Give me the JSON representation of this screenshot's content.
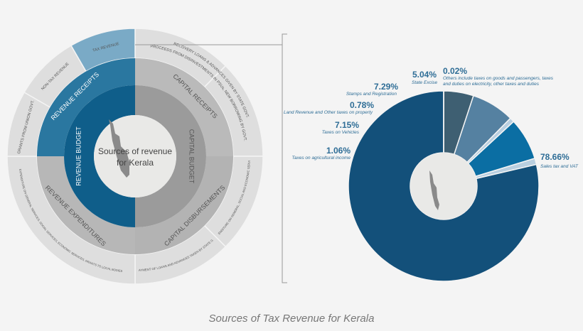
{
  "sunburst": {
    "center_title_line1": "Sources of revenue",
    "center_title_line2": "for Kerala",
    "inner": [
      {
        "label": "REVENUE BUDGET",
        "color": "#0f5e8a"
      },
      {
        "label": "CAPITAL BUDGET",
        "color": "#9b9b9b"
      }
    ],
    "middle": [
      {
        "label": "CAPITAL RECEIPTS",
        "color": "#bababa"
      },
      {
        "label": "CAPITAL DISBURSEMENTS",
        "color": "#b3b3b3"
      },
      {
        "label": "REVENUE EXPENDITURES",
        "color": "#b7b7b7"
      },
      {
        "label": "REVENUE RECEIPTS",
        "color": "#2a77a0"
      }
    ],
    "outer": [
      {
        "label": "RECOVERY LOANS & ADVANCES GIVEN BY STATE GOVT.",
        "color": "#dedede"
      },
      {
        "label": "PROCEEDS FROM DISINVESTMENTS IN PSUs, NEW BORROWING BY GOVT.",
        "color": "#dedede"
      },
      {
        "label": "EXPENDITURE ON GENERAL, SOCIAL AND ECONOMIC SERVICES",
        "color": "#dedede"
      },
      {
        "label": "REPAYMENT OF LOANS AND ADVANCES TAKEN BY STATE GOVT.",
        "color": "#dedede"
      },
      {
        "label": "EXPENDITURE ON GENERAL SERVICES, SOCIAL SERVICES, ECONOMIC SERVICES, GRANTS TO LOCAL BODIES",
        "color": "#dedede"
      },
      {
        "label": "GRANTS FROM UNION GOVT.",
        "color": "#dedede"
      },
      {
        "label": "NON-TAX REVENUE",
        "color": "#dedede"
      },
      {
        "label": "TAX REVENUE",
        "color": "#7aaac6"
      }
    ]
  },
  "chart_data": {
    "type": "pie",
    "title": "Sources of Tax Revenue for Kerala",
    "unit": "%",
    "slices": [
      {
        "label": "Sales tax and VAT",
        "value": 78.66,
        "display": "78.66%",
        "color": "#13507a"
      },
      {
        "label": "Taxes on agricultural income",
        "value": 1.06,
        "display": "1.06%",
        "color": "#b9cfe0"
      },
      {
        "label": "Taxes on Vehicles",
        "value": 7.15,
        "display": "7.15%",
        "color": "#0b6ea3"
      },
      {
        "label": "Land Revenue and Other taxes on property",
        "value": 0.78,
        "display": "0.78%",
        "color": "#b9cfe0"
      },
      {
        "label": "Stamps and Registration",
        "value": 7.29,
        "display": "7.29%",
        "color": "#5581a1"
      },
      {
        "label": "State Excise",
        "value": 5.04,
        "display": "5.04%",
        "color": "#3e5f72"
      },
      {
        "label": "Others include taxes on goods and passengers, taxes and duties on electricity, other taxes and duties",
        "label_line1": "Others include taxes on goods and passengers, taxes",
        "label_line2": "and duties on electricity, other taxes and duties",
        "value": 0.02,
        "display": "0.02%",
        "color": "#9fb5c5"
      }
    ]
  }
}
